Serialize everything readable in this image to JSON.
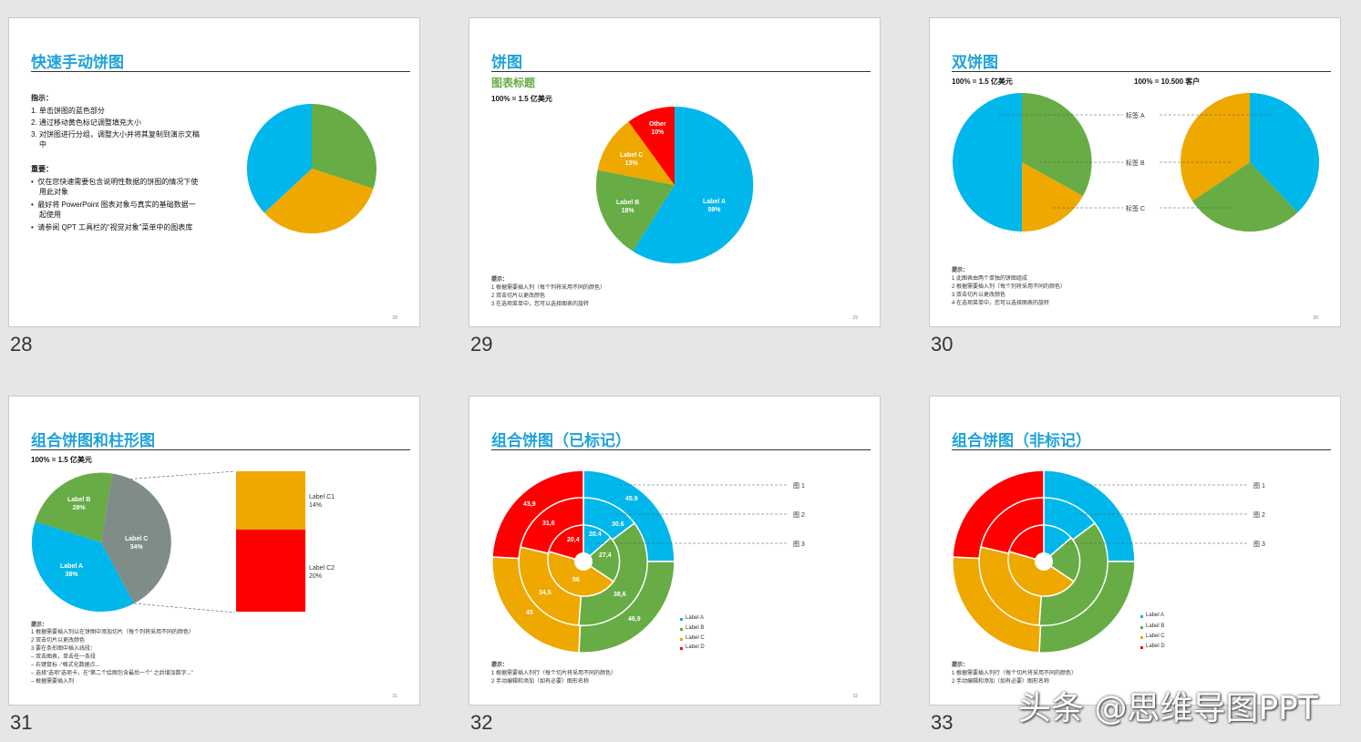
{
  "colors": {
    "blue": "#00b7eb",
    "green": "#67ac45",
    "orange": "#eea800",
    "red": "#ff0000",
    "gray": "#7f8c8a",
    "title": "#1fa2d8"
  },
  "slides": [
    {
      "number": "28",
      "page": "28",
      "title": "快速手动饼图",
      "instr_head": "指示：",
      "instr": [
        "1. 单击饼图的蓝色部分",
        "2. 通过移动黄色标记调整填充大小",
        "3. 对饼图进行分组，调整大小并将其复制到演示文稿",
        "中"
      ],
      "important_head": "重要：",
      "bullets": [
        "仅在您快速需要包含说明性数据的饼图的情况下使",
        "用此对象",
        "最好将 PowerPoint 图表对象与真实的基础数据一",
        "起使用",
        "请参阅 QPT 工具栏的“视觉对象”菜单中的图表库"
      ]
    },
    {
      "number": "29",
      "page": "29",
      "title": "饼图",
      "subtitle": "图表标题",
      "basis": "100% = 1.5 亿美元",
      "labels": [
        {
          "name": "Label A",
          "pct": "59%"
        },
        {
          "name": "Label B",
          "pct": "18%"
        },
        {
          "name": "Label C",
          "pct": "13%"
        },
        {
          "name": "Other",
          "pct": "10%"
        }
      ],
      "hint_head": "提示：",
      "hints": [
        "1 根据需要插入列（每个列将采用不同的颜色）",
        "2 双击切片以更改颜色",
        "3 在选项菜单中，您可以选择图表的旋转"
      ]
    },
    {
      "number": "30",
      "page": "30",
      "title": "双饼图",
      "basis_left": "100% = 1.5 亿美元",
      "basis_right": "100% = 10.500 客户",
      "labels": [
        "标签 A",
        "标签 B",
        "标签 C"
      ],
      "hint_head": "提示：",
      "hints": [
        "1 此图表由两个单独的饼图组成",
        "2 根据需要插入列（每个列将采用不同的颜色）",
        "3 双击切片以更改颜色",
        "4 在选项菜单中，您可以选择图表的旋转"
      ]
    },
    {
      "number": "31",
      "page": "31",
      "title": "组合饼图和柱形图",
      "basis": "100% = 1.5 亿美元",
      "labels": [
        {
          "name": "Label B",
          "pct": "28%"
        },
        {
          "name": "Label C",
          "pct": "34%"
        },
        {
          "name": "Label A",
          "pct": "38%"
        }
      ],
      "bar_labels": [
        {
          "name": "Label C1",
          "pct": "14%"
        },
        {
          "name": "Label C2",
          "pct": "20%"
        }
      ],
      "hint_head": "提示：",
      "hints": [
        "1 根据需要插入列以在饼图中添加切片（每个列将采用不同的颜色）",
        "2  双击切片以更改颜色",
        "3  要在条形图中插入线段：",
        "    – 双击图表，单击任一条段",
        "    – 右键鼠标 -“格式化数据点...",
        "    – 选择“选项”选项卡，在“第二个绘图包含最后一个” 之后增加数字...”",
        "    – 根据需要插入列"
      ]
    },
    {
      "number": "32",
      "page": "32",
      "title": "组合饼图（已标记）",
      "values": {
        "outer": [
          "45.9",
          "46,9",
          "45",
          "43,9"
        ],
        "middle": [
          "30.6",
          "38,6",
          "34,5",
          "31,6"
        ],
        "inner": [
          "20.4",
          "27,4",
          "56",
          "20,4"
        ]
      },
      "figs": [
        "图 1",
        "图 2",
        "图 3"
      ],
      "legend": [
        "Label A",
        "Label B",
        "Label C",
        "Label D"
      ],
      "hint_head": "提示：",
      "hints": [
        "1 根据需要插入列行（每个切片将采用不同的颜色）",
        "2 手动编辑和添加（如有必要）图形名称"
      ]
    },
    {
      "number": "33",
      "page": "33",
      "title": "组合饼图（非标记）",
      "figs": [
        "图 1",
        "图 2",
        "图 3"
      ],
      "legend": [
        "Label A",
        "Label B",
        "Label C",
        "Label D"
      ],
      "hint_head": "提示：",
      "hints": [
        "1 根据需要插入列行（每个切片将采用不同的颜色）",
        "2 手动编辑和添加（如有必要）图形名称"
      ]
    }
  ],
  "watermark": "头条 @思维导图PPT"
}
